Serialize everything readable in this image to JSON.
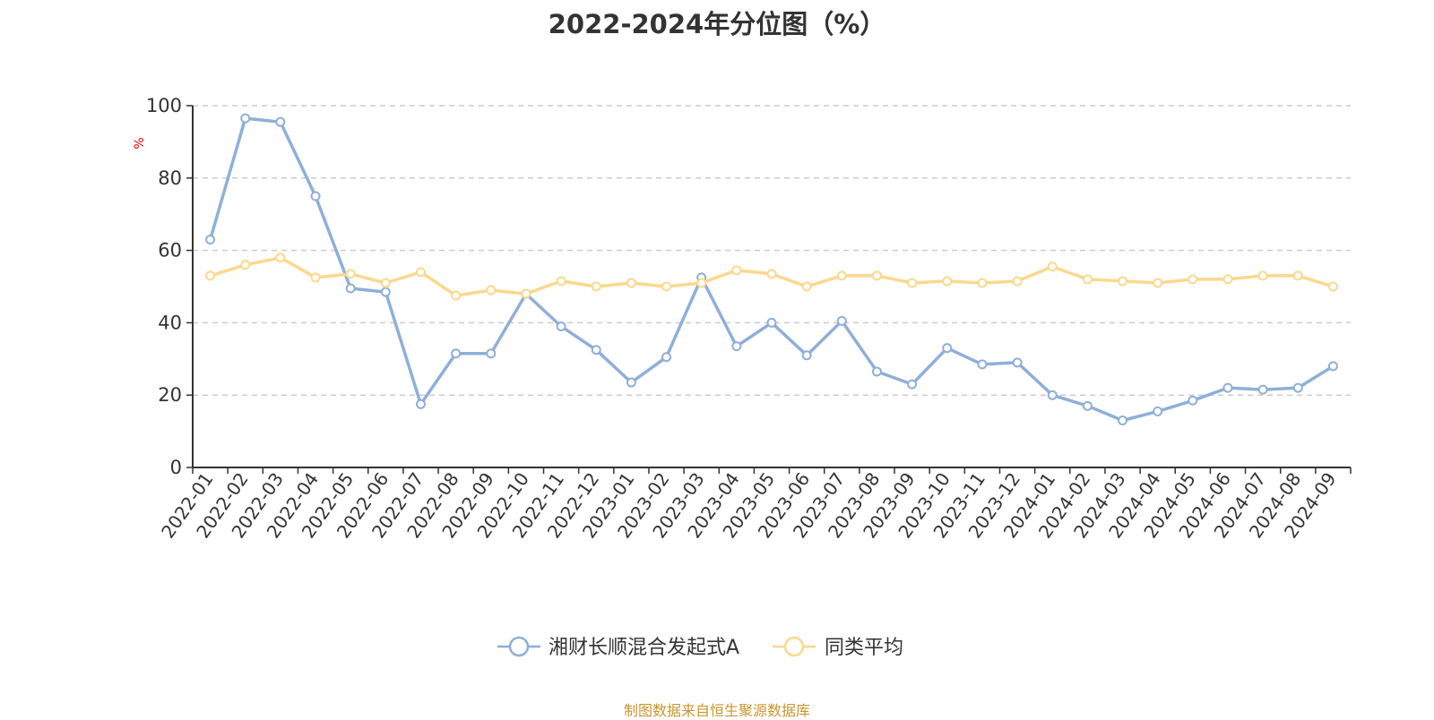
{
  "chart_data": {
    "type": "line",
    "title": "2022-2024年分位图（%）",
    "ylabel": "%",
    "ylim": [
      0,
      100
    ],
    "yticks": [
      0,
      20,
      40,
      60,
      80,
      100
    ],
    "grid": true,
    "legend_position": "bottom-center",
    "categories": [
      "2022-01",
      "2022-02",
      "2022-03",
      "2022-04",
      "2022-05",
      "2022-06",
      "2022-07",
      "2022-08",
      "2022-09",
      "2022-10",
      "2022-11",
      "2022-12",
      "2023-01",
      "2023-02",
      "2023-03",
      "2023-04",
      "2023-05",
      "2023-06",
      "2023-07",
      "2023-08",
      "2023-09",
      "2023-10",
      "2023-11",
      "2023-12",
      "2024-01",
      "2024-02",
      "2024-03",
      "2024-04",
      "2024-05",
      "2024-06",
      "2024-07",
      "2024-08",
      "2024-09"
    ],
    "series": [
      {
        "name": "湘财长顺混合发起式A",
        "color": "#8fafd8",
        "values": [
          63,
          96.5,
          95.5,
          75,
          49.5,
          48.5,
          17.5,
          31.5,
          31.5,
          48,
          39,
          32.5,
          23.5,
          30.5,
          52.5,
          33.5,
          40,
          31,
          40.5,
          26.5,
          23,
          33,
          28.5,
          29,
          20,
          17,
          13,
          15.5,
          18.5,
          22,
          21.5,
          22,
          28
        ]
      },
      {
        "name": "同类平均",
        "color": "#fbd88e",
        "values": [
          53,
          56,
          58,
          52.5,
          53.5,
          51,
          54,
          47.5,
          49,
          48,
          51.5,
          50,
          51,
          50,
          51,
          54.5,
          53.5,
          50,
          53,
          53,
          51,
          51.5,
          51,
          51.5,
          55.5,
          52,
          51.5,
          51,
          52,
          52,
          53,
          53,
          50
        ]
      }
    ]
  },
  "source": "制图数据来自恒生聚源数据库"
}
